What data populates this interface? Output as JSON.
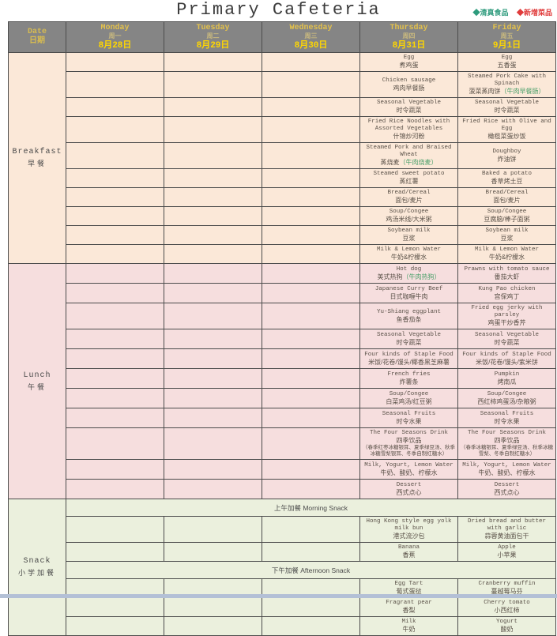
{
  "title": "Primary Cafeteria",
  "legend": {
    "halal_label": "◆清真食品",
    "new_label": "◆新增菜品"
  },
  "colors": {
    "halal_green": "#2e9b7d",
    "new_red": "#e03b3b",
    "header_bg": "#858585",
    "breakfast_bg": "#fbe8d8",
    "lunch_bg": "#f6dede",
    "snack_bg": "#ebf0dd",
    "day_gold": "#e3c14c",
    "date_yellow": "#ffd700"
  },
  "header": {
    "date_en": "Date",
    "date_zh": "日期",
    "days": [
      {
        "en": "Monday",
        "zh": "周一",
        "date": "8月28日"
      },
      {
        "en": "Tuesday",
        "zh": "周二",
        "date": "8月29日"
      },
      {
        "en": "Wednesday",
        "zh": "周三",
        "date": "8月30日"
      },
      {
        "en": "Thursday",
        "zh": "周四",
        "date": "8月31日"
      },
      {
        "en": "Friday",
        "zh": "周五",
        "date": "9月1日"
      }
    ]
  },
  "sections": [
    {
      "label_en": "Breakfast",
      "label_zh": "早餐",
      "rows": [
        {
          "thu": {
            "en": "Egg",
            "zh": "煮鸡蛋"
          },
          "fri": {
            "en": "Egg",
            "zh": "五香蛋"
          }
        },
        {
          "thu": {
            "en": "Chicken sausage",
            "zh": "鸡肉早餐肠"
          },
          "fri": {
            "en": "Steamed Pork Cake with Spinach",
            "zh": "菠菜蒸肉饼",
            "green": "（牛肉早餐肠）"
          }
        },
        {
          "thu": {
            "en": "Seasonal Vegetable",
            "zh": "时令蔬菜"
          },
          "fri": {
            "en": "Seasonal Vegetable",
            "zh": "时令蔬菜"
          }
        },
        {
          "thu": {
            "en": "Fried Rice Noodles with Assorted Vegetables",
            "zh": "什锦炒河粉"
          },
          "fri": {
            "en": "Fried Rice with Olive and Egg",
            "zh": "橄榄菜蛋炒饭"
          }
        },
        {
          "thu": {
            "en": "Steamed Pork and Braised Wheat",
            "zh": "蒸烧麦",
            "green": "（牛肉烧麦）"
          },
          "fri": {
            "en": "Doughboy",
            "zh": "炸油饼"
          }
        },
        {
          "thu": {
            "en": "Steamed sweet potato",
            "zh": "蒸红薯"
          },
          "fri": {
            "en": "Baked a potato",
            "zh": "香草烤土豆"
          }
        },
        {
          "thu": {
            "en": "Bread/Cereal",
            "zh": "面包/麦片"
          },
          "fri": {
            "en": "Bread/Cereal",
            "zh": "面包/麦片"
          }
        },
        {
          "thu": {
            "en": "Soup/Congee",
            "zh": "鸡汤米线/大米粥"
          },
          "fri": {
            "en": "Soup/Congee",
            "zh": "豆腐脑/棒子面粥"
          }
        },
        {
          "thu": {
            "en": "Soybean milk",
            "zh": "豆浆"
          },
          "fri": {
            "en": "Soybean milk",
            "zh": "豆浆"
          }
        },
        {
          "thu": {
            "en": "Milk & Lemon Water",
            "zh": "牛奶&柠檬水"
          },
          "fri": {
            "en": "Milk & Lemon Water",
            "zh": "牛奶&柠檬水"
          }
        }
      ]
    },
    {
      "label_en": "Lunch",
      "label_zh": "午餐",
      "rows": [
        {
          "thu": {
            "en": "Hot dog",
            "zh": "美式热狗",
            "green": "（牛肉热狗）"
          },
          "fri": {
            "en": "Prawns with tomato sauce",
            "zh": "番茄大虾"
          }
        },
        {
          "thu": {
            "en": "Japanese Curry Beef",
            "zh": "日式咖喱牛肉"
          },
          "fri": {
            "en": "Kung Pao chicken",
            "zh": "宫保鸡丁"
          }
        },
        {
          "thu": {
            "en": "Yu-Shiang eggplant",
            "zh": "鱼香茄条"
          },
          "fri": {
            "en": "Fried egg jerky with parsley",
            "zh": "鸡蛋干炒香芹"
          }
        },
        {
          "thu": {
            "en": "Seasonal Vegetable",
            "zh": "时令蔬菜"
          },
          "fri": {
            "en": "Seasonal Vegetable",
            "zh": "时令蔬菜"
          }
        },
        {
          "thu": {
            "en": "Four kinds of Staple Food",
            "zh": "米饭/花卷/馒头/椰香黑芝麻薯"
          },
          "fri": {
            "en": "Four kinds of Staple Food",
            "zh": "米饭/花卷/馒头/紫米饼"
          }
        },
        {
          "thu": {
            "en": "French fries",
            "zh": "炸薯条"
          },
          "fri": {
            "en": "Pumpkin",
            "zh": "烤南瓜"
          }
        },
        {
          "thu": {
            "en": "Soup/Congee",
            "zh": "白菜鸡汤/红豆粥"
          },
          "fri": {
            "en": "Soup/Congee",
            "zh": "西红柿鸡蛋汤/杂粮粥"
          }
        },
        {
          "thu": {
            "en": "Seasonal Fruits",
            "zh": "时令水果"
          },
          "fri": {
            "en": "Seasonal Fruits",
            "zh": "时令水果"
          }
        },
        {
          "thu": {
            "en": "The Four Seasons Drink",
            "zh": "四季饮品",
            "note": "（春季红枣冰糖银耳、夏季绿豆汤、秋季冰糖雪梨银耳、冬季自制红糖水）"
          },
          "fri": {
            "en": "The Four Seasons Drink",
            "zh": "四季饮品",
            "note": "（春季冰糖银耳、夏季绿豆汤、秋季冰糖雪梨、冬季自制红糖水）"
          }
        },
        {
          "thu": {
            "en": "Milk, Yogurt,  Lemon Water",
            "zh": "牛奶、酸奶、柠檬水"
          },
          "fri": {
            "en": "Milk, Yogurt,  Lemon Water",
            "zh": "牛奶、酸奶、柠檬水"
          }
        },
        {
          "thu": {
            "en": "Dessert",
            "zh": "西式点心"
          },
          "fri": {
            "en": "Dessert",
            "zh": "西式点心"
          }
        }
      ]
    },
    {
      "label_en": "Snack",
      "label_zh": "小学加餐",
      "rows": [
        {
          "span": "上午加餐 Morning Snack"
        },
        {
          "thu": {
            "en": "Hong Kong style egg yolk milk bun",
            "zh": "港式流沙包"
          },
          "fri": {
            "en": "Dried bread and butter with garlic",
            "zh": "蒜蓉黄油面包干"
          }
        },
        {
          "thu": {
            "en": "Banana",
            "zh": "香蕉"
          },
          "fri": {
            "en": "Apple",
            "zh": "小苹果"
          }
        },
        {
          "span": "下午加餐 Afternoon Snack"
        },
        {
          "thu": {
            "en": "Egg Tart",
            "zh": "葡式蛋挞"
          },
          "fri": {
            "en": "Cranberry muffin",
            "zh": "蔓越莓马芬"
          }
        },
        {
          "thu": {
            "en": "Fragrant pear",
            "zh": "香梨"
          },
          "fri": {
            "en": "Cherry tomato",
            "zh": "小西红柿"
          }
        },
        {
          "thu": {
            "en": "Milk",
            "zh": "牛奶"
          },
          "fri": {
            "en": "Yogurt",
            "zh": "酸奶"
          }
        }
      ]
    }
  ]
}
